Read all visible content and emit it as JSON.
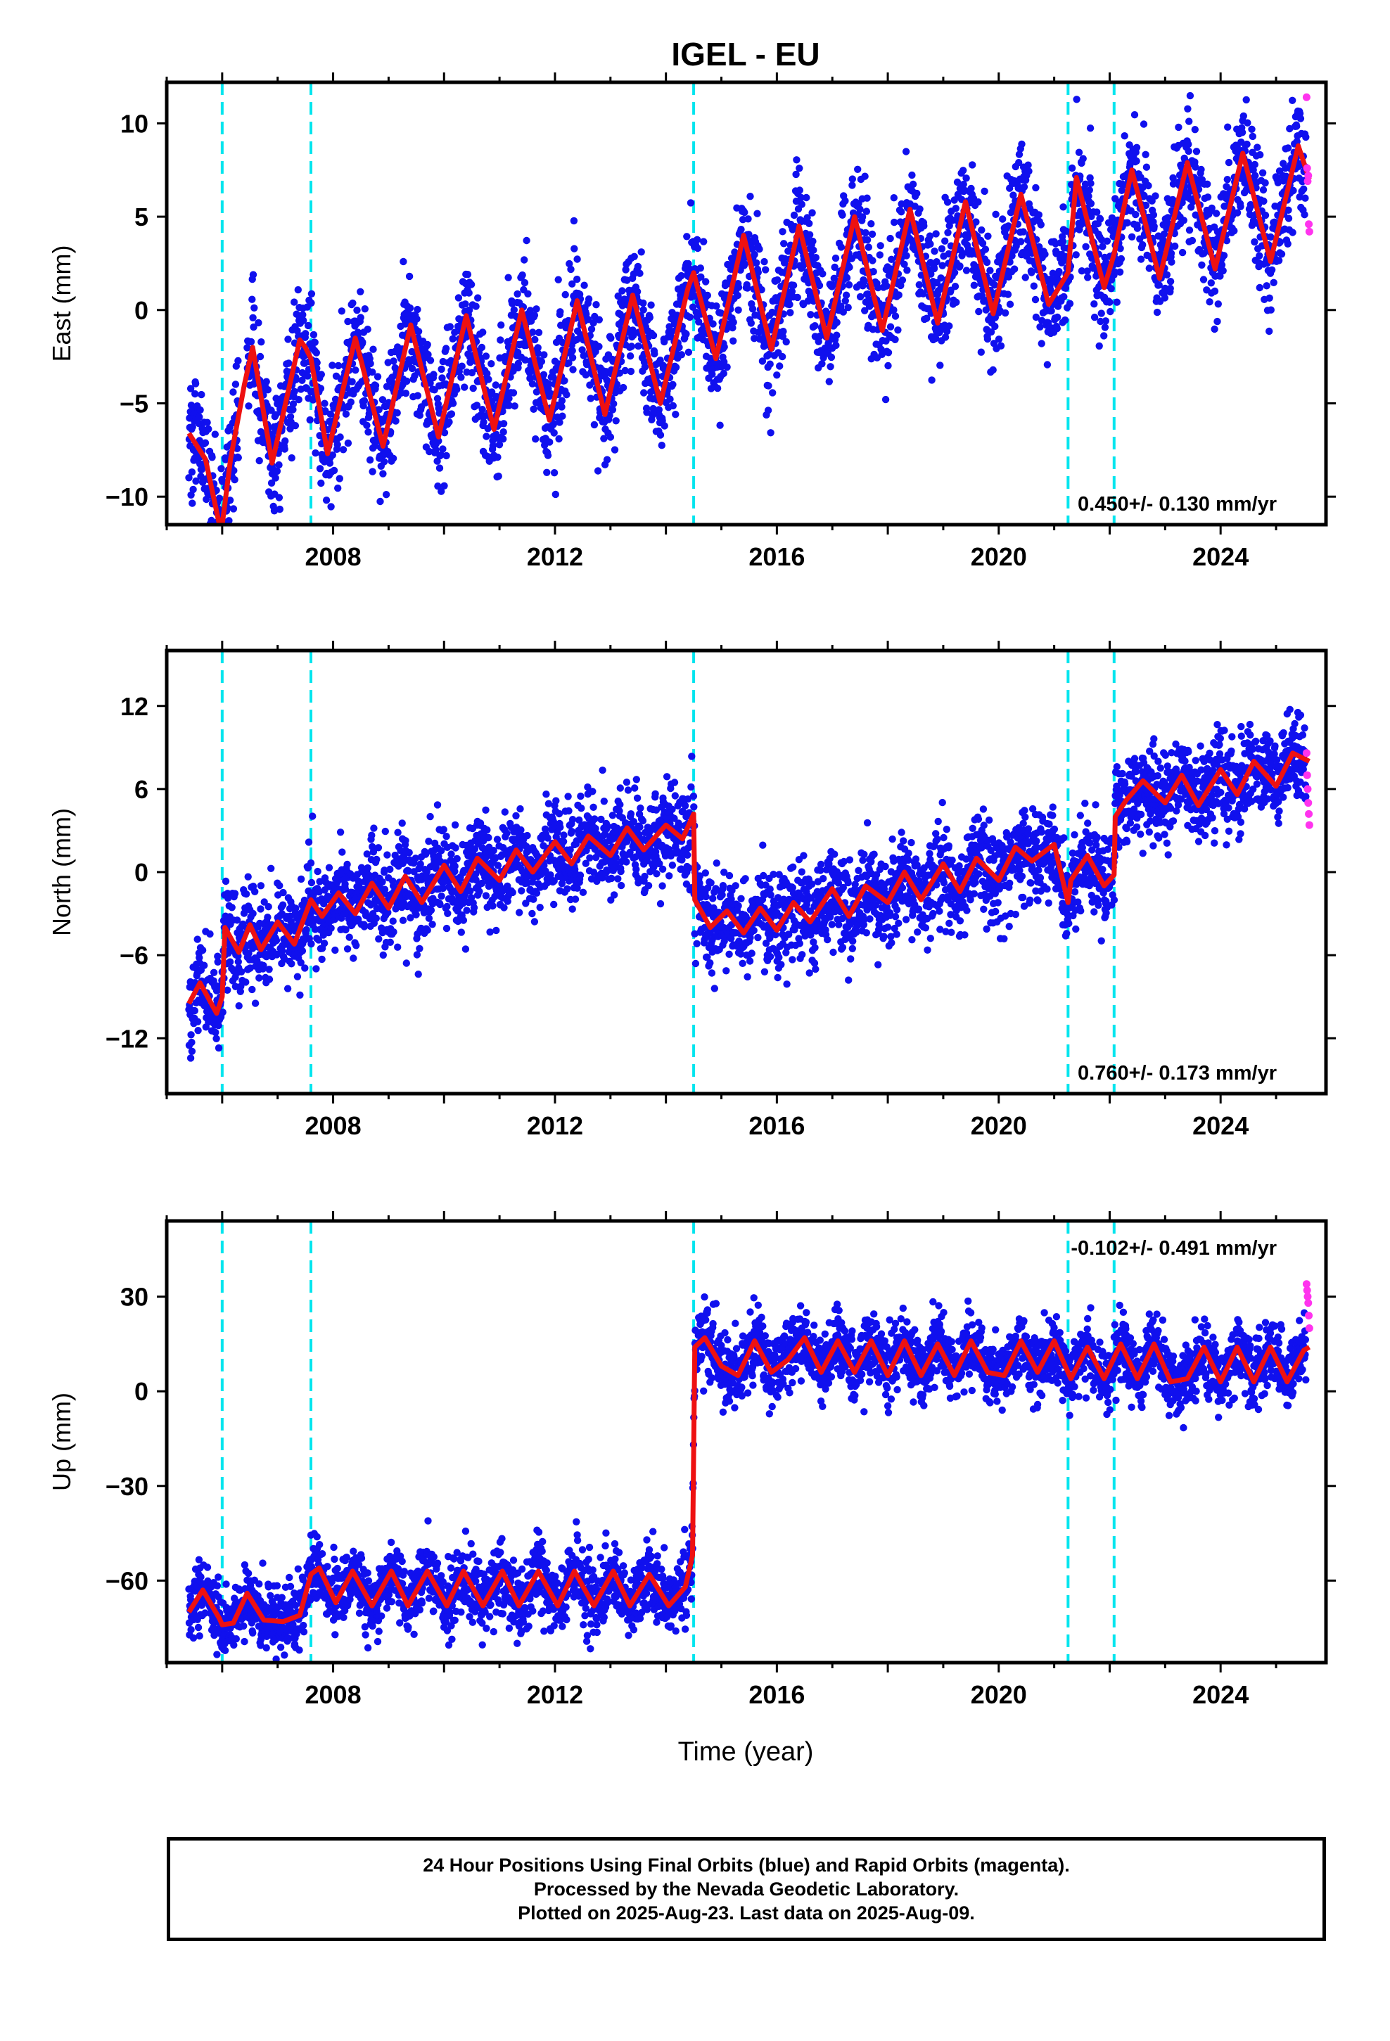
{
  "title": "IGEL - EU",
  "xlabel": "Time (year)",
  "caption": {
    "line1": "24 Hour Positions Using Final Orbits (blue) and Rapid Orbits (magenta).",
    "line2": "Processed by the Nevada Geodetic Laboratory.",
    "line3": "Plotted on 2025-Aug-23. Last data on 2025-Aug-09."
  },
  "colors": {
    "final_orbits": "#1010ee",
    "rapid_orbits": "#ff33ee",
    "model": "#ee1111",
    "steps": "#00e5ee"
  },
  "chart_data": [
    {
      "type": "scatter",
      "component": "East",
      "ylabel": "East (mm)",
      "ylim": [
        -11.5,
        12.2
      ],
      "yticks": [
        -10,
        -5,
        0,
        5,
        10
      ],
      "xlim": [
        2005.0,
        2025.9
      ],
      "xticks": [
        2008,
        2012,
        2016,
        2020,
        2024
      ],
      "rate": "0.450+/- 0.130 mm/yr",
      "rate_position": "bottom-right",
      "steps": [
        2006.0,
        2007.6,
        2014.5,
        2021.25,
        2022.08
      ],
      "series": [
        {
          "kind": "model",
          "x": [
            2005.4,
            2005.7,
            2005.95,
            2006.0,
            2006.15,
            2006.4,
            2006.55,
            2006.9,
            2007.4,
            2007.5,
            2007.6,
            2007.9,
            2008.4,
            2008.9,
            2009.4,
            2009.9,
            2010.4,
            2010.9,
            2011.4,
            2011.9,
            2012.4,
            2012.9,
            2013.4,
            2013.9,
            2014.4,
            2014.5,
            2014.9,
            2015.4,
            2015.9,
            2016.4,
            2016.9,
            2017.4,
            2017.9,
            2018.4,
            2018.9,
            2019.4,
            2019.9,
            2020.4,
            2020.9,
            2021.25,
            2021.4,
            2021.9,
            2022.08,
            2022.4,
            2022.9,
            2023.4,
            2023.9,
            2024.4,
            2024.9,
            2025.4,
            2025.6
          ],
          "y": [
            -6.6,
            -8.0,
            -11.5,
            -11.5,
            -8.0,
            -4.0,
            -2.0,
            -8.2,
            -1.6,
            -2.0,
            -2.6,
            -7.7,
            -1.5,
            -7.3,
            -0.8,
            -6.8,
            -0.3,
            -6.4,
            0.0,
            -5.9,
            0.5,
            -5.6,
            0.8,
            -5.0,
            1.2,
            2.0,
            -2.6,
            4.0,
            -2.1,
            4.5,
            -1.5,
            5.0,
            -1.1,
            5.4,
            -0.7,
            5.8,
            -0.2,
            6.2,
            0.3,
            2.0,
            7.1,
            1.2,
            3.0,
            7.5,
            1.7,
            7.9,
            2.2,
            8.4,
            2.6,
            8.8,
            7.0
          ]
        },
        {
          "kind": "rapid",
          "x": [
            2025.55,
            2025.56,
            2025.57,
            2025.58,
            2025.59,
            2025.6
          ],
          "y": [
            11.4,
            7.6,
            6.9,
            7.2,
            4.6,
            4.2
          ]
        }
      ]
    },
    {
      "type": "scatter",
      "component": "North",
      "ylabel": "North (mm)",
      "ylim": [
        -16.0,
        16.0
      ],
      "yticks": [
        -12,
        -6,
        0,
        6,
        12
      ],
      "xlim": [
        2005.0,
        2025.9
      ],
      "xticks": [
        2008,
        2012,
        2016,
        2020,
        2024
      ],
      "rate": "0.760+/- 0.173 mm/yr",
      "rate_position": "bottom-right",
      "steps": [
        2006.0,
        2007.6,
        2014.5,
        2021.25,
        2022.08
      ],
      "series": [
        {
          "kind": "model",
          "x": [
            2005.4,
            2005.6,
            2005.9,
            2006.0,
            2006.05,
            2006.3,
            2006.5,
            2006.7,
            2007.0,
            2007.3,
            2007.6,
            2007.8,
            2008.1,
            2008.4,
            2008.7,
            2009.0,
            2009.3,
            2009.6,
            2010.0,
            2010.3,
            2010.6,
            2011.0,
            2011.3,
            2011.6,
            2012.0,
            2012.3,
            2012.6,
            2013.0,
            2013.3,
            2013.6,
            2014.0,
            2014.3,
            2014.5,
            2014.52,
            2014.8,
            2015.1,
            2015.4,
            2015.7,
            2016.0,
            2016.3,
            2016.6,
            2017.0,
            2017.3,
            2017.6,
            2018.0,
            2018.3,
            2018.6,
            2019.0,
            2019.3,
            2019.6,
            2020.0,
            2020.3,
            2020.6,
            2021.0,
            2021.25,
            2021.3,
            2021.6,
            2021.9,
            2022.08,
            2022.1,
            2022.3,
            2022.6,
            2023.0,
            2023.3,
            2023.6,
            2024.0,
            2024.3,
            2024.6,
            2025.0,
            2025.3,
            2025.6
          ],
          "y": [
            -9.5,
            -8.0,
            -10.2,
            -9.0,
            -4.0,
            -5.8,
            -3.8,
            -5.6,
            -3.6,
            -5.2,
            -2.0,
            -3.2,
            -1.5,
            -3.0,
            -0.8,
            -2.6,
            -0.3,
            -2.2,
            0.5,
            -1.4,
            1.0,
            -0.6,
            1.6,
            0.0,
            2.2,
            0.6,
            2.6,
            1.2,
            3.2,
            1.6,
            3.4,
            2.4,
            4.2,
            -2.0,
            -4.0,
            -2.8,
            -4.4,
            -2.6,
            -4.2,
            -2.2,
            -3.6,
            -1.2,
            -3.2,
            -1.0,
            -2.2,
            0.0,
            -2.0,
            0.6,
            -1.4,
            1.0,
            -0.6,
            1.8,
            0.8,
            2.0,
            -2.2,
            -0.6,
            1.2,
            -1.0,
            -0.2,
            4.0,
            5.2,
            6.6,
            5.0,
            7.0,
            4.8,
            7.4,
            5.6,
            8.0,
            6.2,
            8.6,
            8.0
          ]
        },
        {
          "kind": "rapid",
          "x": [
            2025.55,
            2025.56,
            2025.57,
            2025.58,
            2025.59,
            2025.6
          ],
          "y": [
            8.6,
            7.0,
            6.0,
            5.0,
            4.2,
            3.4
          ]
        }
      ]
    },
    {
      "type": "scatter",
      "component": "Up",
      "ylabel": "Up (mm)",
      "ylim": [
        -86.0,
        54.0
      ],
      "yticks": [
        -60,
        -30,
        0,
        30
      ],
      "xlim": [
        2005.0,
        2025.9
      ],
      "xticks": [
        2008,
        2012,
        2016,
        2020,
        2024
      ],
      "rate": "-0.102+/- 0.491 mm/yr",
      "rate_position": "top-right",
      "steps": [
        2006.0,
        2007.6,
        2014.5,
        2021.25,
        2022.08
      ],
      "series": [
        {
          "kind": "model",
          "x": [
            2005.4,
            2005.65,
            2005.95,
            2006.0,
            2006.2,
            2006.45,
            2006.75,
            2007.1,
            2007.4,
            2007.6,
            2007.75,
            2008.05,
            2008.35,
            2008.7,
            2009.05,
            2009.35,
            2009.7,
            2010.05,
            2010.35,
            2010.7,
            2011.05,
            2011.35,
            2011.7,
            2012.05,
            2012.35,
            2012.7,
            2013.05,
            2013.35,
            2013.7,
            2014.05,
            2014.35,
            2014.48,
            2014.52,
            2014.7,
            2015.0,
            2015.3,
            2015.6,
            2015.9,
            2016.2,
            2016.5,
            2016.8,
            2017.1,
            2017.4,
            2017.7,
            2018.0,
            2018.3,
            2018.6,
            2018.9,
            2019.2,
            2019.5,
            2019.8,
            2020.1,
            2020.4,
            2020.7,
            2021.0,
            2021.3,
            2021.6,
            2021.9,
            2022.2,
            2022.5,
            2022.8,
            2023.1,
            2023.4,
            2023.7,
            2024.0,
            2024.3,
            2024.6,
            2024.9,
            2025.2,
            2025.5,
            2025.6
          ],
          "y": [
            -70.0,
            -63.0,
            -72.0,
            -74.0,
            -73.5,
            -64.0,
            -72.5,
            -73.0,
            -71.0,
            -58.0,
            -56.0,
            -67.0,
            -57.0,
            -68.0,
            -57.0,
            -68.0,
            -57.0,
            -68.0,
            -57.0,
            -68.0,
            -57.0,
            -68.0,
            -57.0,
            -68.0,
            -57.0,
            -68.0,
            -57.0,
            -68.0,
            -58.0,
            -68.0,
            -62.0,
            -52.0,
            14.0,
            17.0,
            8.0,
            5.0,
            16.0,
            6.0,
            10.0,
            17.0,
            6.0,
            16.0,
            6.0,
            16.0,
            5.0,
            16.0,
            5.0,
            15.0,
            5.0,
            16.0,
            6.0,
            5.0,
            16.0,
            6.0,
            16.0,
            4.0,
            14.0,
            4.0,
            15.0,
            4.0,
            15.0,
            3.0,
            4.0,
            14.0,
            3.0,
            14.0,
            3.0,
            14.0,
            3.0,
            13.0,
            14.0
          ]
        },
        {
          "kind": "rapid",
          "x": [
            2025.55,
            2025.56,
            2025.57,
            2025.58,
            2025.59,
            2025.6
          ],
          "y": [
            34.0,
            32.0,
            30.0,
            28.0,
            24.0,
            20.0
          ]
        }
      ]
    }
  ]
}
